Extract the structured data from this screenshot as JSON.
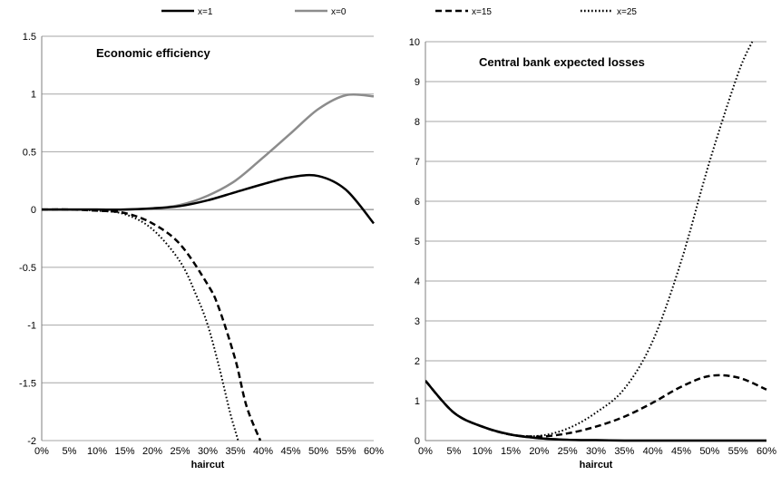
{
  "legend": {
    "placement": "top",
    "items": [
      {
        "label": "x=1",
        "style": "solid",
        "color": "#000000"
      },
      {
        "label": "x=0",
        "style": "solid",
        "color": "#8c8c8c"
      },
      {
        "label": "x=15",
        "style": "dashed",
        "color": "#000000"
      },
      {
        "label": "x=25",
        "style": "dotted",
        "color": "#000000"
      }
    ]
  },
  "chart_data": [
    {
      "type": "line",
      "title": "Economic efficiency",
      "xlabel": "haircut",
      "ylabel": "",
      "grid": true,
      "xlim": [
        0,
        60
      ],
      "ylim": [
        -2,
        1.5
      ],
      "x_ticks": [
        "0%",
        "5%",
        "10%",
        "15%",
        "20%",
        "25%",
        "30%",
        "35%",
        "40%",
        "45%",
        "50%",
        "55%",
        "60%"
      ],
      "y_ticks": [
        "-2",
        "-1.5",
        "-1",
        "-0.5",
        "0",
        "0.5",
        "1",
        "1.5"
      ],
      "y_tick_values": [
        -2,
        -1.5,
        -1,
        -0.5,
        0,
        0.5,
        1,
        1.5
      ],
      "x": [
        0,
        5,
        10,
        15,
        20,
        25,
        30,
        35,
        40,
        45,
        50,
        55,
        60
      ],
      "series": [
        {
          "name": "x=1",
          "values": [
            0,
            0,
            0,
            0,
            0.01,
            0.03,
            0.08,
            0.15,
            0.22,
            0.28,
            0.29,
            0.17,
            -0.12
          ]
        },
        {
          "name": "x=0",
          "values": [
            0,
            0,
            0,
            0,
            0.01,
            0.04,
            0.12,
            0.25,
            0.45,
            0.66,
            0.87,
            0.99,
            0.98
          ]
        },
        {
          "name": "x=15",
          "x": [
            0,
            5,
            10,
            15,
            20,
            25,
            30,
            32,
            35,
            37,
            39.5
          ],
          "values": [
            0,
            0,
            -0.01,
            -0.03,
            -0.12,
            -0.3,
            -0.65,
            -0.85,
            -1.3,
            -1.7,
            -2
          ]
        },
        {
          "name": "x=25",
          "x": [
            0,
            5,
            10,
            15,
            20,
            25,
            28,
            30,
            32,
            34,
            35.5
          ],
          "values": [
            0,
            0,
            -0.01,
            -0.04,
            -0.17,
            -0.45,
            -0.75,
            -1.0,
            -1.35,
            -1.75,
            -2
          ]
        }
      ]
    },
    {
      "type": "line",
      "title": "Central bank expected losses",
      "xlabel": "haircut",
      "ylabel": "",
      "grid": true,
      "xlim": [
        0,
        60
      ],
      "ylim": [
        0,
        10
      ],
      "x_ticks": [
        "0%",
        "5%",
        "10%",
        "15%",
        "20%",
        "25%",
        "30%",
        "35%",
        "40%",
        "45%",
        "50%",
        "55%",
        "60%"
      ],
      "y_ticks": [
        "0",
        "1",
        "2",
        "3",
        "4",
        "5",
        "6",
        "7",
        "8",
        "9",
        "10"
      ],
      "y_tick_values": [
        0,
        1,
        2,
        3,
        4,
        5,
        6,
        7,
        8,
        9,
        10
      ],
      "x": [
        0,
        5,
        10,
        15,
        20,
        25,
        30,
        35,
        40,
        45,
        50,
        55,
        60
      ],
      "series": [
        {
          "name": "x=1",
          "values": [
            1.5,
            0.7,
            0.35,
            0.15,
            0.06,
            0.02,
            0.01,
            0,
            0,
            0,
            0,
            0,
            0
          ]
        },
        {
          "name": "x=0",
          "values": [
            1.5,
            0.7,
            0.35,
            0.15,
            0.06,
            0.02,
            0.01,
            0,
            0,
            0,
            0,
            0,
            0
          ]
        },
        {
          "name": "x=15",
          "values": [
            1.5,
            0.7,
            0.35,
            0.15,
            0.1,
            0.18,
            0.35,
            0.6,
            0.95,
            1.35,
            1.62,
            1.58,
            1.28
          ]
        },
        {
          "name": "x=25",
          "x": [
            0,
            5,
            10,
            15,
            20,
            25,
            30,
            35,
            40,
            45,
            50,
            55,
            57.5
          ],
          "values": [
            1.5,
            0.7,
            0.35,
            0.15,
            0.12,
            0.3,
            0.7,
            1.3,
            2.5,
            4.5,
            7.0,
            9.2,
            10
          ]
        }
      ]
    }
  ]
}
